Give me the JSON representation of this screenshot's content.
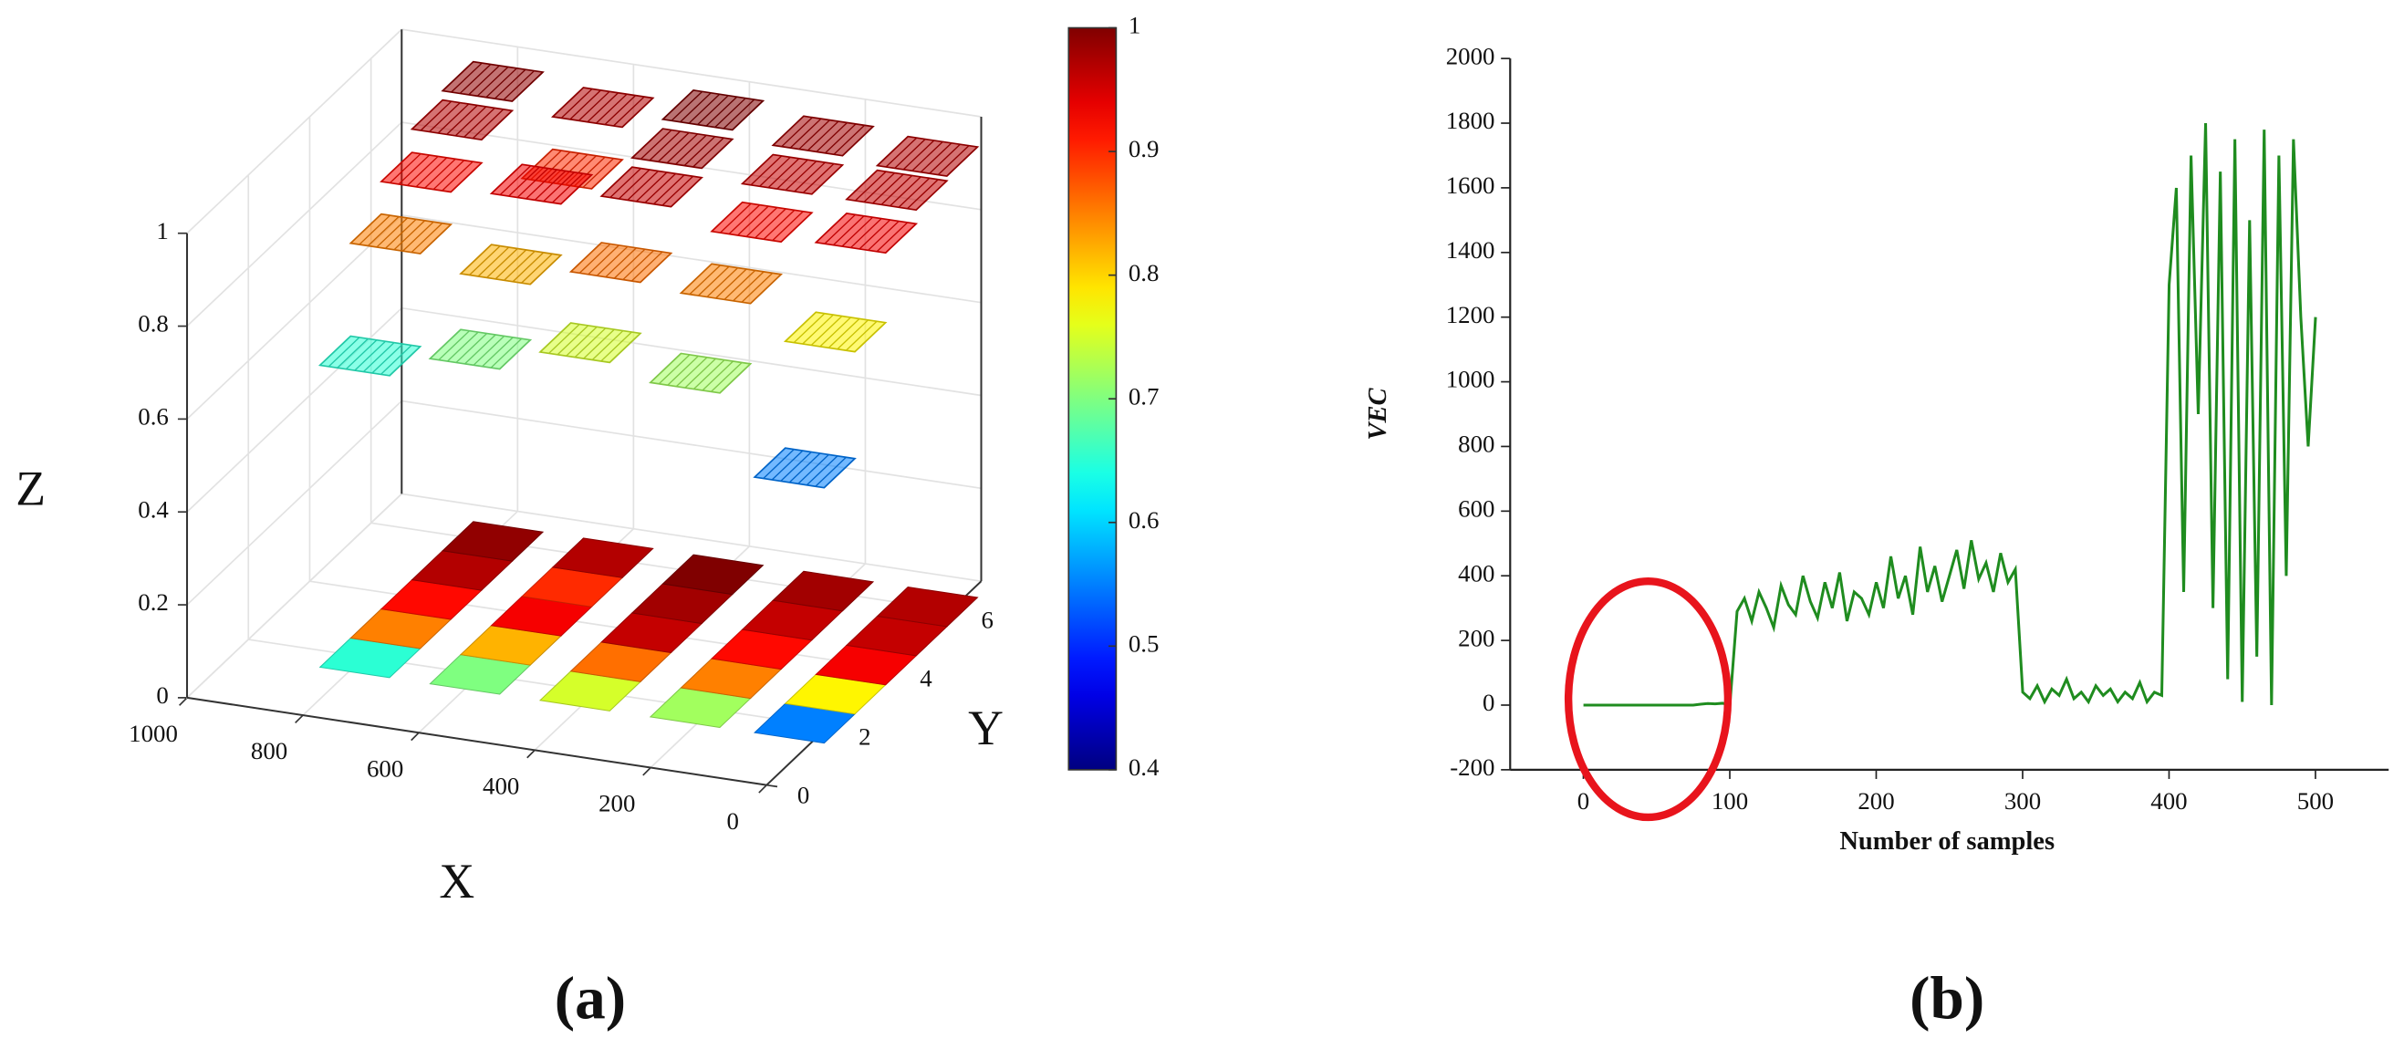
{
  "chart_data": [
    {
      "type": "wireframe3d",
      "caption": "(a)",
      "xlabel": "X",
      "ylabel": "Y",
      "zlabel": "Z",
      "xlim": [
        0,
        1000
      ],
      "xticks": [
        0,
        200,
        400,
        600,
        800,
        1000
      ],
      "ylim": [
        0,
        7
      ],
      "yticks": [
        0,
        2,
        4,
        6
      ],
      "zlim": [
        0,
        1
      ],
      "zticks": [
        0,
        0.2,
        0.4,
        0.6,
        0.8,
        1
      ],
      "clim": [
        0.4,
        1
      ],
      "cticks": [
        0.4,
        0.5,
        0.6,
        0.7,
        0.8,
        0.9,
        1
      ],
      "colormap": "jet",
      "x": [
        790,
        600,
        410,
        220,
        40
      ],
      "y": [
        2,
        3,
        4,
        5,
        6
      ],
      "z": [
        [
          0.65,
          0.85,
          0.92,
          0.97,
          0.99
        ],
        [
          0.7,
          0.82,
          0.93,
          0.9,
          0.97
        ],
        [
          0.75,
          0.86,
          0.96,
          0.98,
          1.0
        ],
        [
          0.72,
          0.85,
          0.92,
          0.96,
          0.98
        ],
        [
          0.55,
          0.78,
          0.93,
          0.96,
          0.97
        ]
      ]
    },
    {
      "type": "line",
      "caption": "(b)",
      "xlabel": "Number of samples",
      "ylabel": "VEC",
      "xlim": [
        -50,
        550
      ],
      "xticks": [
        0,
        100,
        200,
        300,
        400,
        500
      ],
      "ylim": [
        -200,
        2000
      ],
      "yticks": [
        -200,
        0,
        200,
        400,
        600,
        800,
        1000,
        1200,
        1400,
        1600,
        1800,
        2000
      ],
      "color": "#1f8c1f",
      "highlight_color": "#e8141c",
      "x": [
        0,
        5,
        10,
        15,
        20,
        25,
        30,
        35,
        40,
        45,
        50,
        55,
        60,
        65,
        70,
        75,
        80,
        85,
        90,
        95,
        100,
        105,
        110,
        115,
        120,
        125,
        130,
        135,
        140,
        145,
        150,
        155,
        160,
        165,
        170,
        175,
        180,
        185,
        190,
        195,
        200,
        205,
        210,
        215,
        220,
        225,
        230,
        235,
        240,
        245,
        250,
        255,
        260,
        265,
        270,
        275,
        280,
        285,
        290,
        295,
        300,
        305,
        310,
        315,
        320,
        325,
        330,
        335,
        340,
        345,
        350,
        355,
        360,
        365,
        370,
        375,
        380,
        385,
        390,
        395,
        400,
        405,
        410,
        415,
        420,
        425,
        430,
        435,
        440,
        445,
        450,
        455,
        460,
        465,
        470,
        475,
        480,
        485,
        490,
        495,
        500
      ],
      "values": [
        0,
        0,
        0,
        0,
        0,
        0,
        0,
        0,
        0,
        0,
        0,
        0,
        0,
        0,
        0,
        0,
        3,
        5,
        4,
        6,
        0,
        290,
        330,
        260,
        350,
        300,
        240,
        370,
        310,
        280,
        400,
        320,
        270,
        380,
        300,
        410,
        260,
        350,
        330,
        280,
        380,
        300,
        460,
        330,
        400,
        280,
        490,
        350,
        430,
        320,
        400,
        480,
        360,
        510,
        390,
        440,
        350,
        470,
        380,
        420,
        40,
        20,
        60,
        10,
        50,
        30,
        80,
        20,
        40,
        10,
        60,
        30,
        50,
        10,
        40,
        20,
        70,
        10,
        40,
        30,
        1300,
        1600,
        350,
        1700,
        900,
        1800,
        300,
        1650,
        80,
        1750,
        10,
        1500,
        150,
        1780,
        0,
        1700,
        400,
        1750,
        1200,
        800,
        1200
      ]
    }
  ]
}
